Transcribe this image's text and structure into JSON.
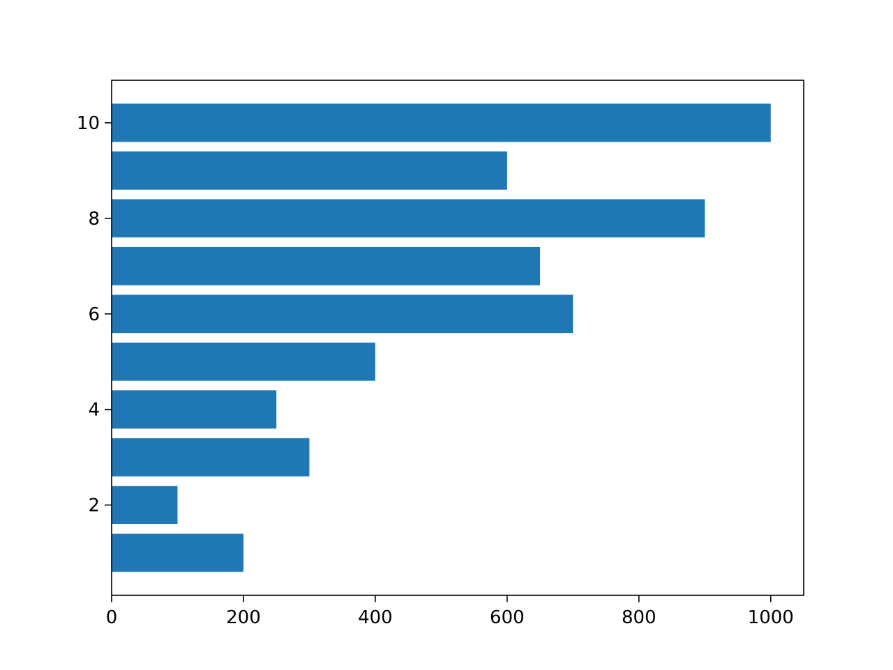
{
  "chart_data": {
    "type": "barh",
    "y": [
      1,
      2,
      3,
      4,
      5,
      6,
      7,
      8,
      9,
      10
    ],
    "values": [
      200,
      100,
      300,
      250,
      400,
      700,
      650,
      900,
      600,
      1000
    ],
    "color": "#1f77b4",
    "xlim": [
      0,
      1050
    ],
    "xticks": [
      0,
      200,
      400,
      600,
      800,
      1000
    ],
    "ylim": [
      0.11,
      10.89
    ],
    "yticks": [
      2,
      4,
      6,
      8,
      10
    ],
    "grid": false
  }
}
